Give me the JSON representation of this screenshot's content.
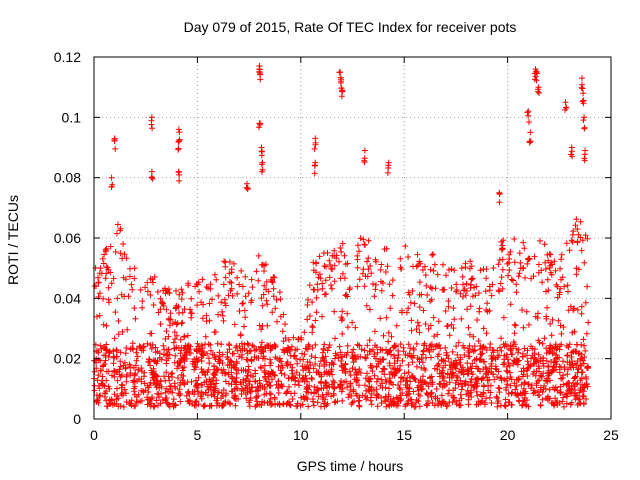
{
  "chart_data": {
    "type": "scatter",
    "title": "Day 079 of 2015, Rate Of TEC Index for receiver pots",
    "xlabel": "GPS time / hours",
    "ylabel": "ROTI / TECUs",
    "xlim": [
      0,
      25
    ],
    "ylim": [
      0,
      0.12
    ],
    "xticks": [
      0,
      5,
      10,
      15,
      20,
      25
    ],
    "xtick_labels": [
      "0",
      "5",
      "10",
      "15",
      "20",
      "25"
    ],
    "yticks": [
      0,
      0.02,
      0.04,
      0.06,
      0.08,
      0.1,
      0.12
    ],
    "ytick_labels": [
      "0",
      "0.02",
      "0.04",
      "0.06",
      "0.08",
      "0.1",
      "0.12"
    ],
    "grid": true,
    "marker": "+",
    "marker_color": "#ff0000",
    "series": [
      {
        "name": "ROTI",
        "x_range_hours": [
          0,
          23.9
        ],
        "baseline_band": [
          0.004,
          0.025
        ],
        "envelope": [
          [
            0.0,
            0.05
          ],
          [
            0.5,
            0.055
          ],
          [
            1.0,
            0.065
          ],
          [
            1.5,
            0.065
          ],
          [
            2.0,
            0.05
          ],
          [
            2.5,
            0.045
          ],
          [
            3.0,
            0.05
          ],
          [
            3.5,
            0.045
          ],
          [
            4.0,
            0.045
          ],
          [
            4.5,
            0.045
          ],
          [
            5.0,
            0.05
          ],
          [
            5.5,
            0.045
          ],
          [
            6.0,
            0.05
          ],
          [
            6.5,
            0.055
          ],
          [
            7.0,
            0.05
          ],
          [
            7.5,
            0.05
          ],
          [
            8.0,
            0.055
          ],
          [
            8.5,
            0.05
          ],
          [
            9.0,
            0.045
          ],
          [
            9.5,
            0.035
          ],
          [
            10.0,
            0.03
          ],
          [
            10.5,
            0.05
          ],
          [
            11.0,
            0.06
          ],
          [
            11.5,
            0.055
          ],
          [
            12.0,
            0.06
          ],
          [
            12.5,
            0.055
          ],
          [
            13.0,
            0.065
          ],
          [
            13.5,
            0.055
          ],
          [
            14.0,
            0.06
          ],
          [
            14.5,
            0.06
          ],
          [
            15.0,
            0.06
          ],
          [
            15.5,
            0.055
          ],
          [
            16.0,
            0.055
          ],
          [
            16.5,
            0.055
          ],
          [
            17.0,
            0.05
          ],
          [
            17.5,
            0.05
          ],
          [
            18.0,
            0.055
          ],
          [
            18.5,
            0.05
          ],
          [
            19.0,
            0.05
          ],
          [
            19.5,
            0.06
          ],
          [
            20.0,
            0.06
          ],
          [
            20.5,
            0.06
          ],
          [
            21.0,
            0.06
          ],
          [
            21.5,
            0.065
          ],
          [
            22.0,
            0.055
          ],
          [
            22.5,
            0.055
          ],
          [
            23.0,
            0.06
          ],
          [
            23.5,
            0.07
          ],
          [
            23.9,
            0.06
          ]
        ],
        "spikes": [
          [
            1.0,
            0.093
          ],
          [
            0.85,
            0.08
          ],
          [
            2.8,
            0.1
          ],
          [
            2.8,
            0.082
          ],
          [
            4.1,
            0.096
          ],
          [
            4.1,
            0.092
          ],
          [
            4.1,
            0.082
          ],
          [
            7.4,
            0.078
          ],
          [
            8.0,
            0.117
          ],
          [
            8.0,
            0.116
          ],
          [
            8.0,
            0.098
          ],
          [
            8.1,
            0.09
          ],
          [
            8.15,
            0.085
          ],
          [
            10.7,
            0.093
          ],
          [
            10.7,
            0.085
          ],
          [
            11.9,
            0.115
          ],
          [
            11.95,
            0.112
          ],
          [
            12.0,
            0.109
          ],
          [
            13.1,
            0.089
          ],
          [
            14.25,
            0.085
          ],
          [
            19.6,
            0.075
          ],
          [
            21.0,
            0.102
          ],
          [
            21.1,
            0.095
          ],
          [
            21.35,
            0.116
          ],
          [
            21.4,
            0.115
          ],
          [
            21.5,
            0.11
          ],
          [
            22.8,
            0.105
          ],
          [
            23.1,
            0.09
          ],
          [
            23.6,
            0.113
          ],
          [
            23.65,
            0.108
          ],
          [
            23.7,
            0.1
          ],
          [
            23.75,
            0.089
          ]
        ]
      }
    ]
  }
}
